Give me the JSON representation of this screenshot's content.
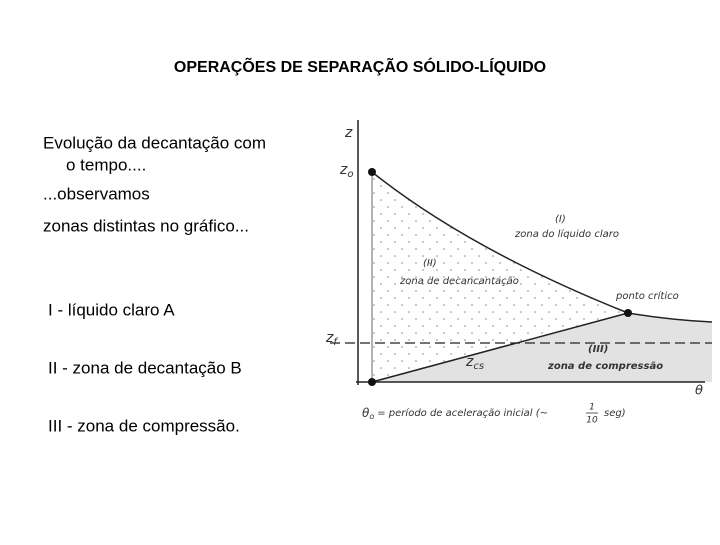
{
  "title": "OPERAÇÕES DE SEPARAÇÃO SÓLIDO-LÍQUIDO",
  "intro": [
    "Evolução da decantação com",
    "o tempo....",
    "...observamos",
    "zonas distintas no gráfico..."
  ],
  "items": [
    "I - líquido claro A",
    "II - zona de decantação B",
    "III - zona de compressão."
  ],
  "diagram": {
    "y_axis": "z",
    "x_axis": "θ",
    "z0": {
      "main": "z",
      "sub": "o"
    },
    "zf": {
      "main": "z",
      "sub": "f"
    },
    "zcs": {
      "main": "z",
      "sub": "cs"
    },
    "zone1": {
      "number": "(I)",
      "label": "zona do líquido claro"
    },
    "zone2": {
      "number": "(II)",
      "label": "zona de decancantação"
    },
    "zone3": {
      "number": "(III)",
      "label": "zona de compressão"
    },
    "critical_point": "ponto crítico",
    "caption": {
      "symbol": "θ",
      "sub": "o",
      "text": "= período de aceleração inicial (~",
      "numerator": "1",
      "denominator": "10",
      "unit": "seg)"
    }
  }
}
